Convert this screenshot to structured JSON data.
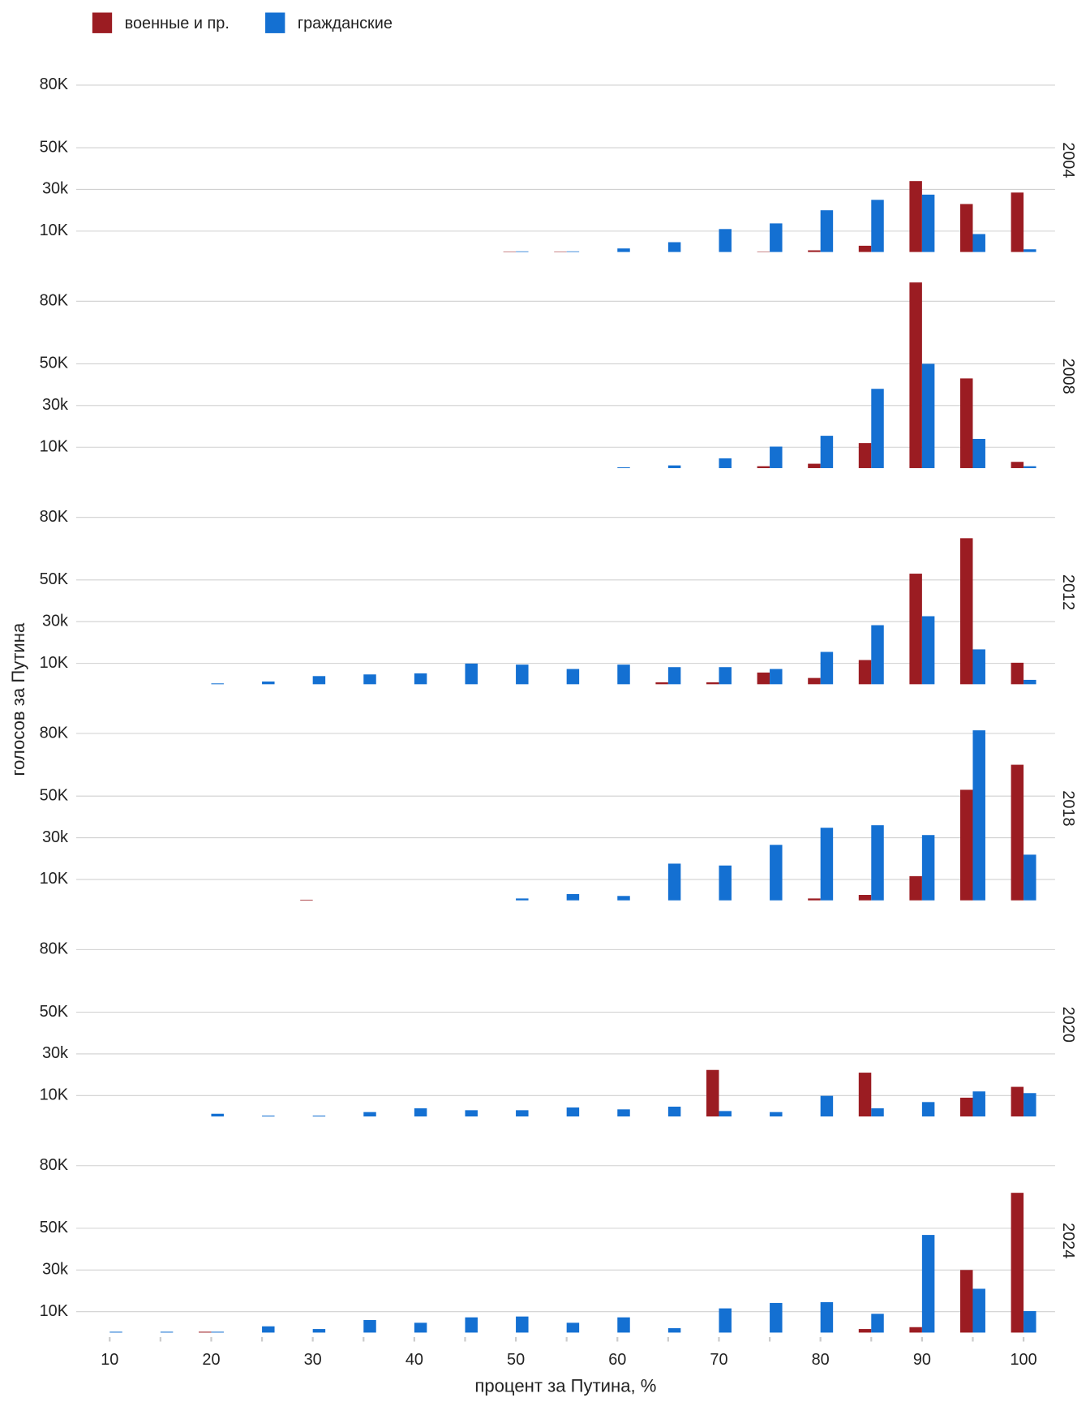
{
  "chart_data": {
    "type": "bar",
    "y_label": "голосов за Путина",
    "x_label": "процент за Путина, %",
    "x": [
      10,
      15,
      20,
      25,
      30,
      35,
      40,
      45,
      50,
      55,
      60,
      65,
      70,
      75,
      80,
      85,
      90,
      95,
      100
    ],
    "xlim": [
      6.7,
      103.1
    ],
    "xticks": [
      10,
      20,
      30,
      40,
      50,
      60,
      70,
      80,
      90,
      100
    ],
    "ylim": [
      0,
      95000
    ],
    "yticks": [
      {
        "value": 10000,
        "label": "10K"
      },
      {
        "value": 30000,
        "label": "30k"
      },
      {
        "value": 50000,
        "label": "50K"
      },
      {
        "value": 80000,
        "label": "80K"
      }
    ],
    "grid": true,
    "legend": "top",
    "series": [
      {
        "name": "военные и пр.",
        "color": "#9b1c22"
      },
      {
        "name": "гражданские",
        "color": "#1470d2"
      }
    ],
    "facets": [
      {
        "label": "2004",
        "series": [
          {
            "values": [
              0,
              0,
              0,
              0,
              0,
              0,
              0,
              0,
              200,
              200,
              0,
              0,
              0,
              200,
              800,
              3000,
              34000,
              23000,
              28500
            ]
          },
          {
            "values": [
              0,
              0,
              0,
              0,
              0,
              0,
              0,
              0,
              300,
              300,
              1700,
              4700,
              11000,
              13700,
              20000,
              25000,
              27500,
              8600,
              1300
            ]
          }
        ]
      },
      {
        "label": "2008",
        "series": [
          {
            "values": [
              0,
              0,
              0,
              0,
              0,
              0,
              0,
              0,
              0,
              0,
              0,
              0,
              0,
              900,
              2100,
              12000,
              89000,
              43000,
              3000
            ]
          },
          {
            "values": [
              0,
              0,
              0,
              0,
              0,
              0,
              0,
              0,
              0,
              0,
              400,
              1300,
              4700,
              10300,
              15500,
              38000,
              50000,
              14000,
              900
            ]
          }
        ]
      },
      {
        "label": "2012",
        "series": [
          {
            "values": [
              0,
              0,
              0,
              0,
              0,
              0,
              0,
              0,
              0,
              0,
              0,
              900,
              900,
              5600,
              3000,
              11600,
              53000,
              70000,
              10300
            ]
          },
          {
            "values": [
              0,
              0,
              400,
              1300,
              3900,
              4700,
              5200,
              9900,
              9400,
              7300,
              9400,
              8200,
              8200,
              7300,
              15500,
              28300,
              32600,
              16700,
              2100
            ]
          }
        ]
      },
      {
        "label": "2018",
        "series": [
          {
            "values": [
              0,
              0,
              0,
              0,
              300,
              0,
              0,
              0,
              0,
              0,
              0,
              0,
              0,
              0,
              900,
              2600,
              11600,
              53000,
              65000
            ]
          },
          {
            "values": [
              0,
              0,
              0,
              0,
              0,
              0,
              0,
              0,
              900,
              3000,
              2100,
              17600,
              16700,
              26600,
              34800,
              36000,
              31300,
              81500,
              21900
            ]
          }
        ]
      },
      {
        "label": "2020",
        "series": [
          {
            "values": [
              0,
              0,
              0,
              0,
              0,
              0,
              0,
              0,
              0,
              0,
              0,
              0,
              22300,
              0,
              0,
              21000,
              0,
              9000,
              14200
            ]
          },
          {
            "values": [
              0,
              0,
              1300,
              400,
              400,
              2100,
              3900,
              3000,
              3000,
              4300,
              3400,
              4700,
              2600,
              2100,
              9900,
              3900,
              6900,
              12000,
              11200
            ]
          }
        ]
      },
      {
        "label": "2024",
        "series": [
          {
            "values": [
              0,
              0,
              400,
              0,
              0,
              0,
              0,
              0,
              0,
              0,
              0,
              0,
              0,
              0,
              0,
              1700,
              2600,
              30000,
              67000
            ]
          },
          {
            "values": [
              400,
              400,
              400,
              3000,
              1700,
              6000,
              4700,
              7300,
              7700,
              4700,
              7300,
              2100,
              11600,
              14200,
              14600,
              9000,
              46800,
              21000,
              10300
            ]
          }
        ]
      }
    ]
  }
}
